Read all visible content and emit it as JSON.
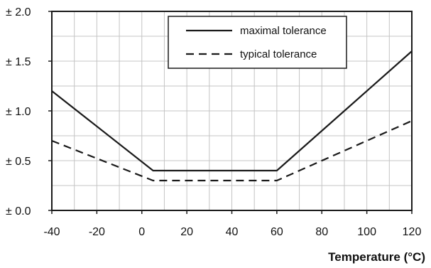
{
  "chart_data": {
    "type": "line",
    "xlabel": "Temperature (°C)",
    "ylabel": "",
    "xlim": [
      -40,
      120
    ],
    "ylim": [
      0,
      2.0
    ],
    "x_ticks": [
      -40,
      -20,
      0,
      20,
      40,
      60,
      80,
      100,
      120
    ],
    "x_tick_labels": [
      "-40",
      "-20",
      "0",
      "20",
      "40",
      "60",
      "80",
      "100",
      "120"
    ],
    "y_ticks": [
      0,
      0.5,
      1.0,
      1.5,
      2.0
    ],
    "y_tick_labels": [
      "± 0.0",
      "± 0.5",
      "± 1.0",
      "± 1.5",
      "± 2.0"
    ],
    "grid": true,
    "legend_position": "top-center",
    "series": [
      {
        "name": "maximal tolerance",
        "style": "solid",
        "color": "#1a1a1a",
        "points": [
          [
            -40,
            1.2
          ],
          [
            5,
            0.4
          ],
          [
            60,
            0.4
          ],
          [
            120,
            1.6
          ]
        ]
      },
      {
        "name": "typical tolerance",
        "style": "dashed",
        "color": "#1a1a1a",
        "points": [
          [
            -40,
            0.7
          ],
          [
            5,
            0.3
          ],
          [
            60,
            0.3
          ],
          [
            120,
            0.9
          ]
        ]
      }
    ]
  }
}
